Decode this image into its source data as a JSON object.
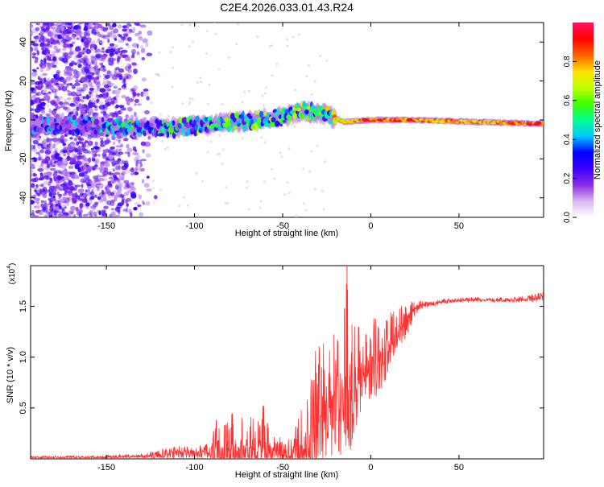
{
  "title": "C2E4.2026.033.01.43.R24",
  "chart_data": [
    {
      "type": "heatmap",
      "xlabel": "Height of straight line (km)",
      "ylabel": "Frequency (Hz)",
      "xlim": [
        -193,
        98
      ],
      "ylim": [
        -50,
        50
      ],
      "xticks": [
        -150,
        -100,
        -50,
        0,
        50
      ],
      "yticks": [
        -40,
        -20,
        0,
        20,
        40
      ],
      "colorbar": {
        "label": "Normalized spectral amplitude",
        "range": [
          0,
          1
        ],
        "ticks": [
          0.0,
          0.2,
          0.4,
          0.6,
          0.8
        ],
        "colormap": [
          "#ffffff",
          "#d8b8f0",
          "#8a2be2",
          "#3a00ff",
          "#0000ff",
          "#00c8ff",
          "#00ff90",
          "#40ff00",
          "#c0ff00",
          "#ffe000",
          "#ff6000",
          "#ff0000",
          "#ff1060"
        ]
      },
      "trace": {
        "description_points": [
          {
            "x": -193,
            "f": -2,
            "amp": 0.2
          },
          {
            "x": -135,
            "f": -4,
            "amp": 0.35
          },
          {
            "x": -110,
            "f": -4,
            "amp": 0.4
          },
          {
            "x": -80,
            "f": -1,
            "amp": 0.45
          },
          {
            "x": -50,
            "f": 1,
            "amp": 0.45
          },
          {
            "x": -40,
            "f": 5,
            "amp": 0.5
          },
          {
            "x": -25,
            "f": 3,
            "amp": 0.5
          },
          {
            "x": -15,
            "f": -1,
            "amp": 0.75
          },
          {
            "x": 0,
            "f": 0,
            "amp": 0.85
          },
          {
            "x": 25,
            "f": 0,
            "amp": 0.8
          },
          {
            "x": 60,
            "f": -1,
            "amp": 0.75
          },
          {
            "x": 98,
            "f": -2,
            "amp": 0.9
          }
        ]
      },
      "grid": false
    },
    {
      "type": "line",
      "xlabel": "Height of straight line (km)",
      "ylabel": "SNR (10 * v/v)",
      "y_multiplier": "(x10",
      "y_multiplier_exp": "4",
      "y_multiplier_close": ")",
      "xlim": [
        -193,
        98
      ],
      "ylim": [
        0,
        1.9
      ],
      "xticks": [
        -150,
        -100,
        -50,
        0,
        50
      ],
      "yticks": [
        0.5,
        1.0,
        1.5
      ],
      "series": [
        {
          "color": "#ff3030",
          "x": [
            -193,
            -160,
            -130,
            -120,
            -110,
            -100,
            -92,
            -88,
            -80,
            -75,
            -70,
            -65,
            -60,
            -55,
            -50,
            -45,
            -40,
            -35,
            -32,
            -30,
            -25,
            -20,
            -15,
            -13,
            -10,
            -5,
            0,
            5,
            10,
            15,
            20,
            25,
            30,
            40,
            50,
            60,
            70,
            80,
            90,
            98
          ],
          "y": [
            0.02,
            0.02,
            0.03,
            0.05,
            0.08,
            0.07,
            0.1,
            0.18,
            0.2,
            0.22,
            0.18,
            0.22,
            0.2,
            0.12,
            0.1,
            0.08,
            0.15,
            0.3,
            0.5,
            0.6,
            0.7,
            0.8,
            0.9,
            1.1,
            0.9,
            0.95,
            1.05,
            1.1,
            1.2,
            1.3,
            1.4,
            1.5,
            1.53,
            1.55,
            1.57,
            1.57,
            1.57,
            1.57,
            1.58,
            1.6
          ],
          "noise": [
            0.01,
            0.01,
            0.02,
            0.04,
            0.05,
            0.05,
            0.08,
            0.3,
            0.25,
            0.3,
            0.25,
            0.3,
            0.35,
            0.15,
            0.12,
            0.12,
            0.3,
            0.45,
            0.55,
            0.6,
            0.5,
            0.5,
            0.6,
            0.8,
            0.45,
            0.35,
            0.35,
            0.3,
            0.25,
            0.2,
            0.15,
            0.06,
            0.03,
            0.02,
            0.02,
            0.02,
            0.02,
            0.02,
            0.03,
            0.04
          ]
        }
      ],
      "grid": false
    }
  ]
}
